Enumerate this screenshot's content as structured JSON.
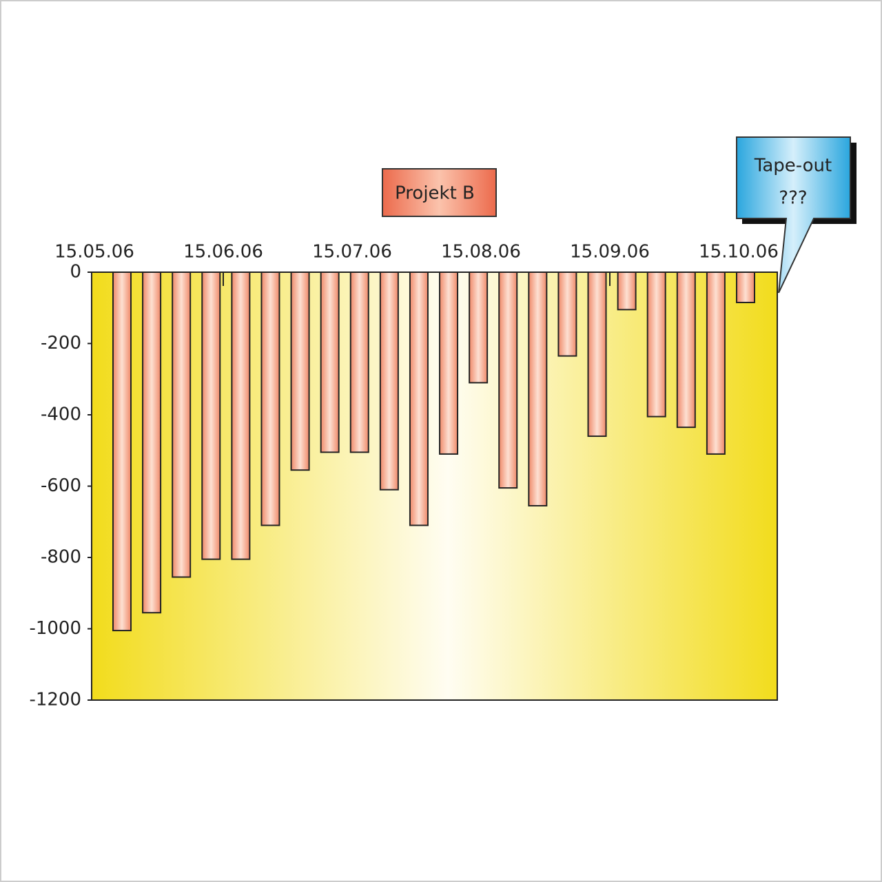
{
  "chart_data": {
    "type": "bar",
    "title": "Projekt B",
    "callout": [
      "Tape-out",
      "???"
    ],
    "date_labels": [
      "15.05.06",
      "15.06.06",
      "15.07.06",
      "15.08.06",
      "15.09.06",
      "15.10.06"
    ],
    "values": [
      -1005,
      -955,
      -855,
      -805,
      -805,
      -710,
      -555,
      -505,
      -505,
      -610,
      -710,
      -510,
      -310,
      -605,
      -655,
      -235,
      -460,
      -105,
      -405,
      -435,
      -510,
      -85
    ],
    "color": "#f08a6a",
    "ylim": [
      -1200,
      0
    ],
    "yticks": [
      0,
      -200,
      -400,
      -600,
      -800,
      -1000,
      -1200
    ]
  }
}
